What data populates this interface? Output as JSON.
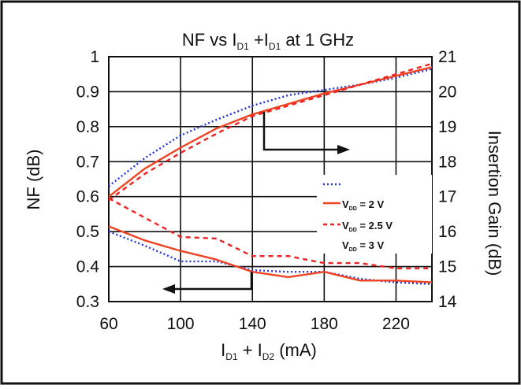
{
  "chart_data": {
    "type": "line",
    "title": "NF vs I_D1 +I_D1 at 1 GHz",
    "title_parts": {
      "pre": "NF vs I",
      "sub1": "D1",
      "mid": " +I",
      "sub2": "D1",
      "post": " at 1 GHz"
    },
    "xlabel": "I_D1 + I_D2 (mA)",
    "xlabel_parts": {
      "pre": "I",
      "sub1": "D1",
      "mid": " + I",
      "sub2": "D2",
      "post": " (mA)"
    },
    "ylabel": "NF (dB)",
    "y2label": "Insertion Gain (dB)",
    "xlim": [
      60,
      240
    ],
    "ylim": [
      0.3,
      1.0
    ],
    "y2lim": [
      14,
      21
    ],
    "x_ticks": [
      "60",
      "100",
      "140",
      "180",
      "220"
    ],
    "y_ticks": [
      "0.3",
      "0.4",
      "0.5",
      "0.6",
      "0.7",
      "0.8",
      "0.9",
      "1"
    ],
    "y2_ticks": [
      "14",
      "15",
      "16",
      "17",
      "18",
      "19",
      "20",
      "21"
    ],
    "grid": true,
    "legend_position": "right, inside plot",
    "legend": [
      {
        "label": "",
        "color": "#2233dd",
        "dash": "dot"
      },
      {
        "label": "V_DD = 2 V",
        "parts": {
          "pre": "V",
          "sub": "DD",
          "post": " = 2 V"
        },
        "color": "#ee4422",
        "dash": "solid"
      },
      {
        "label": "V_DD = 2.5 V",
        "parts": {
          "pre": "V",
          "sub": "DD",
          "post": " = 2.5 V"
        },
        "color": "#ee2222",
        "dash": "dash"
      },
      {
        "label": "V_DD = 3 V",
        "parts": {
          "pre": "V",
          "sub": "DD",
          "post": " = 3 V"
        },
        "color": "",
        "dash": "none"
      }
    ],
    "series": [
      {
        "group": "gain",
        "axis": "right",
        "color": "#2233dd",
        "dash": "dot",
        "x": [
          60,
          80,
          100,
          120,
          140,
          160,
          180,
          200,
          220,
          240
        ],
        "y": [
          17.3,
          18.1,
          18.75,
          19.2,
          19.6,
          19.9,
          20.05,
          20.2,
          20.4,
          20.65
        ]
      },
      {
        "group": "gain",
        "axis": "right",
        "color": "#ee4422",
        "dash": "solid",
        "x": [
          60,
          80,
          100,
          120,
          140,
          160,
          180,
          200,
          220,
          240
        ],
        "y": [
          17.0,
          17.8,
          18.4,
          18.95,
          19.35,
          19.65,
          19.95,
          20.2,
          20.45,
          20.7
        ]
      },
      {
        "group": "gain",
        "axis": "right",
        "color": "#ee2222",
        "dash": "dash",
        "x": [
          60,
          80,
          100,
          120,
          140,
          160,
          180,
          200,
          220,
          240
        ],
        "y": [
          16.9,
          17.65,
          18.25,
          18.8,
          19.3,
          19.6,
          19.9,
          20.2,
          20.5,
          20.8
        ]
      },
      {
        "group": "nf",
        "axis": "left",
        "color": "#2233dd",
        "dash": "dot",
        "x": [
          60,
          80,
          100,
          120,
          140,
          160,
          180,
          200,
          220,
          240
        ],
        "y": [
          0.5,
          0.46,
          0.415,
          0.415,
          0.39,
          0.385,
          0.385,
          0.365,
          0.355,
          0.35
        ]
      },
      {
        "group": "nf",
        "axis": "left",
        "color": "#ee4422",
        "dash": "solid",
        "x": [
          60,
          80,
          100,
          120,
          140,
          160,
          180,
          200,
          220,
          240
        ],
        "y": [
          0.515,
          0.475,
          0.445,
          0.42,
          0.385,
          0.37,
          0.385,
          0.36,
          0.36,
          0.355
        ]
      },
      {
        "group": "nf",
        "axis": "left",
        "color": "#ee2222",
        "dash": "dash",
        "x": [
          60,
          80,
          100,
          120,
          140,
          160,
          180,
          200,
          220,
          240
        ],
        "y": [
          0.595,
          0.54,
          0.485,
          0.48,
          0.43,
          0.43,
          0.41,
          0.41,
          0.395,
          0.395
        ]
      }
    ],
    "annotations": [
      {
        "type": "arrow",
        "points_to": "right axis (Insertion Gain)",
        "group": "gain"
      },
      {
        "type": "arrow",
        "points_to": "left axis (NF)",
        "group": "nf"
      }
    ]
  }
}
